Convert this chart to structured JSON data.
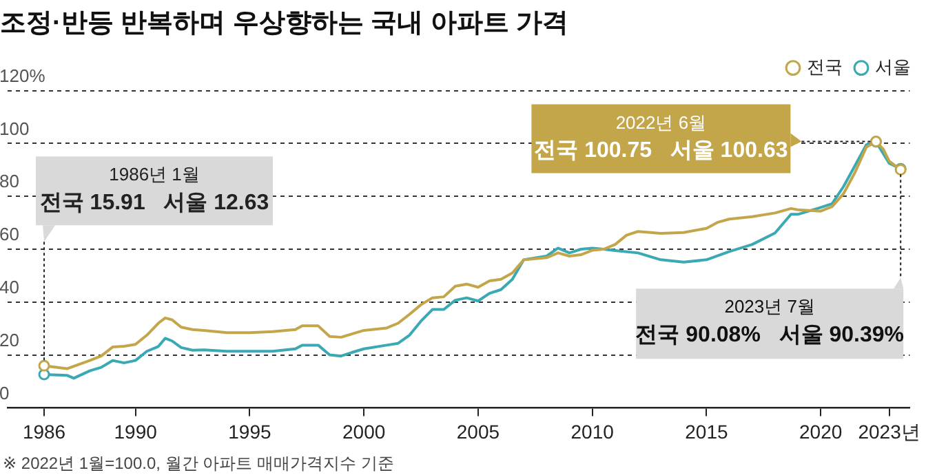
{
  "chart_data": {
    "type": "line",
    "title": "조정·반등 반복하며 우상향하는 국내 아파트 가격",
    "xlim": [
      1984.4,
      2023.9
    ],
    "xticks": [
      1986,
      1990,
      1995,
      2000,
      2005,
      2010,
      2015,
      2020,
      {
        "value": 2023,
        "label": "2023년"
      }
    ],
    "ylim": [
      0,
      120
    ],
    "yticks": [
      0,
      20,
      40,
      60,
      80,
      100,
      {
        "value": 120,
        "label": "120%"
      }
    ],
    "grid": "y",
    "legend": "top right",
    "line_style": "solid",
    "series": [
      {
        "name": "전국",
        "color": "#c4a64a",
        "x": [
          1986,
          1987,
          1988,
          1988.5,
          1989,
          1989.5,
          1990,
          1990.5,
          1991,
          1991.3,
          1991.6,
          1992,
          1992.5,
          1993,
          1994,
          1995,
          1996,
          1997,
          1997.3,
          1998,
          1998.5,
          1999,
          1999.5,
          2000,
          2001,
          2001.5,
          2002,
          2002.5,
          2003,
          2003.5,
          2004,
          2004.5,
          2005,
          2005.5,
          2006,
          2006.5,
          2007,
          2008,
          2008.5,
          2009,
          2009.5,
          2010,
          2010.5,
          2011,
          2011.5,
          2012,
          2013,
          2014,
          2015,
          2015.5,
          2016,
          2017,
          2018,
          2018.7,
          2019,
          2020,
          2020.5,
          2021,
          2021.5,
          2022,
          2022.42,
          2022.75,
          2023,
          2023.5
        ],
        "values": [
          15.91,
          14.8,
          17.9,
          19.6,
          23,
          23.3,
          24,
          27.5,
          32,
          34,
          33.3,
          30.5,
          29.6,
          29.3,
          28.4,
          28.4,
          28.8,
          29.6,
          31,
          31,
          27,
          26.7,
          28,
          29.3,
          30.2,
          32,
          35.4,
          39,
          41.6,
          42,
          46,
          46.8,
          45.6,
          48,
          48.6,
          51,
          56,
          56.8,
          58.6,
          57.4,
          57.9,
          59.6,
          60,
          61.8,
          65.3,
          66.7,
          66,
          66.3,
          67.9,
          70.2,
          71.4,
          72.3,
          73.7,
          75.4,
          74.9,
          74.4,
          76.1,
          81,
          89,
          98.6,
          100.75,
          97.7,
          93.3,
          90.08
        ]
      },
      {
        "name": "서울",
        "color": "#3aa9b3",
        "x": [
          1986,
          1987,
          1987.3,
          1988,
          1988.5,
          1989,
          1989.5,
          1990,
          1990.5,
          1991,
          1991.3,
          1991.6,
          1992,
          1992.5,
          1993,
          1994,
          1995,
          1996,
          1997,
          1997.3,
          1998,
          1998.5,
          1999,
          1999.5,
          2000,
          2001,
          2001.5,
          2002,
          2002.5,
          2003,
          2003.5,
          2004,
          2004.5,
          2005,
          2005.5,
          2006,
          2006.5,
          2007,
          2008,
          2008.5,
          2009,
          2009.5,
          2010,
          2010.5,
          2011,
          2012,
          2013,
          2014,
          2015,
          2016,
          2017,
          2018,
          2018.7,
          2019,
          2020,
          2020.5,
          2021,
          2021.5,
          2022,
          2022.42,
          2023,
          2023.5
        ],
        "values": [
          12.63,
          12.3,
          11.2,
          14,
          15.3,
          17.9,
          17,
          17.9,
          21.4,
          23.2,
          26.3,
          25.3,
          22.8,
          21.8,
          21.9,
          21.4,
          21.4,
          21.4,
          22.3,
          23.7,
          23.7,
          20,
          19.6,
          21,
          22.3,
          23.7,
          24.4,
          27.5,
          32.8,
          37.2,
          37.2,
          40.7,
          41.6,
          40.4,
          43.3,
          44.7,
          48.6,
          56,
          57.4,
          60.4,
          58.6,
          60,
          60.4,
          60,
          59.5,
          58.6,
          56,
          55.1,
          56,
          59.1,
          61.8,
          66.1,
          73.2,
          73.2,
          75.8,
          77.2,
          83.7,
          91.6,
          99.5,
          100.63,
          92.5,
          90.39
        ]
      }
    ],
    "annotations": [
      {
        "text": "1986년 1월\n전국 15.91   서울 12.63",
        "x": 1986,
        "y": 15.91
      },
      {
        "text": "2022년 6월\n전국 100.75   서울 100.63",
        "x": 2022.42,
        "y": 100.75
      },
      {
        "text": "2023년 7월\n전국 90.08%   서울 90.39%",
        "x": 2023.5,
        "y": 90.39
      },
      "※ 2022년 1월=100.0, 월간 아파트 매매가격지수 기준"
    ]
  }
}
